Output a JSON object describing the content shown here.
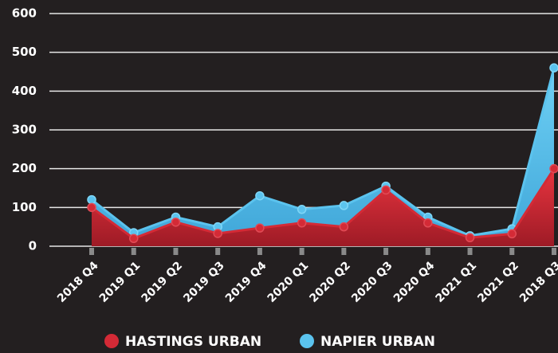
{
  "chart_data": {
    "type": "area",
    "categories": [
      "2018 Q4",
      "2019 Q1",
      "2019 Q2",
      "2019 Q3",
      "2019 Q4",
      "2020 Q1",
      "2020 Q2",
      "2020 Q3",
      "2020 Q4",
      "2021 Q1",
      "2021 Q2",
      "2018 Q3"
    ],
    "series": [
      {
        "name": "HASTINGS URBAN",
        "color": "#d42a36",
        "values": [
          100,
          20,
          62,
          33,
          47,
          60,
          50,
          145,
          60,
          22,
          32,
          200
        ]
      },
      {
        "name": "NAPIER URBAN",
        "color": "#5bc3ee",
        "values": [
          120,
          35,
          75,
          50,
          130,
          95,
          105,
          155,
          75,
          27,
          45,
          460
        ]
      }
    ],
    "ylim": [
      0,
      600
    ],
    "yticks": [
      0,
      100,
      200,
      300,
      400,
      500,
      600
    ],
    "grid": true
  }
}
